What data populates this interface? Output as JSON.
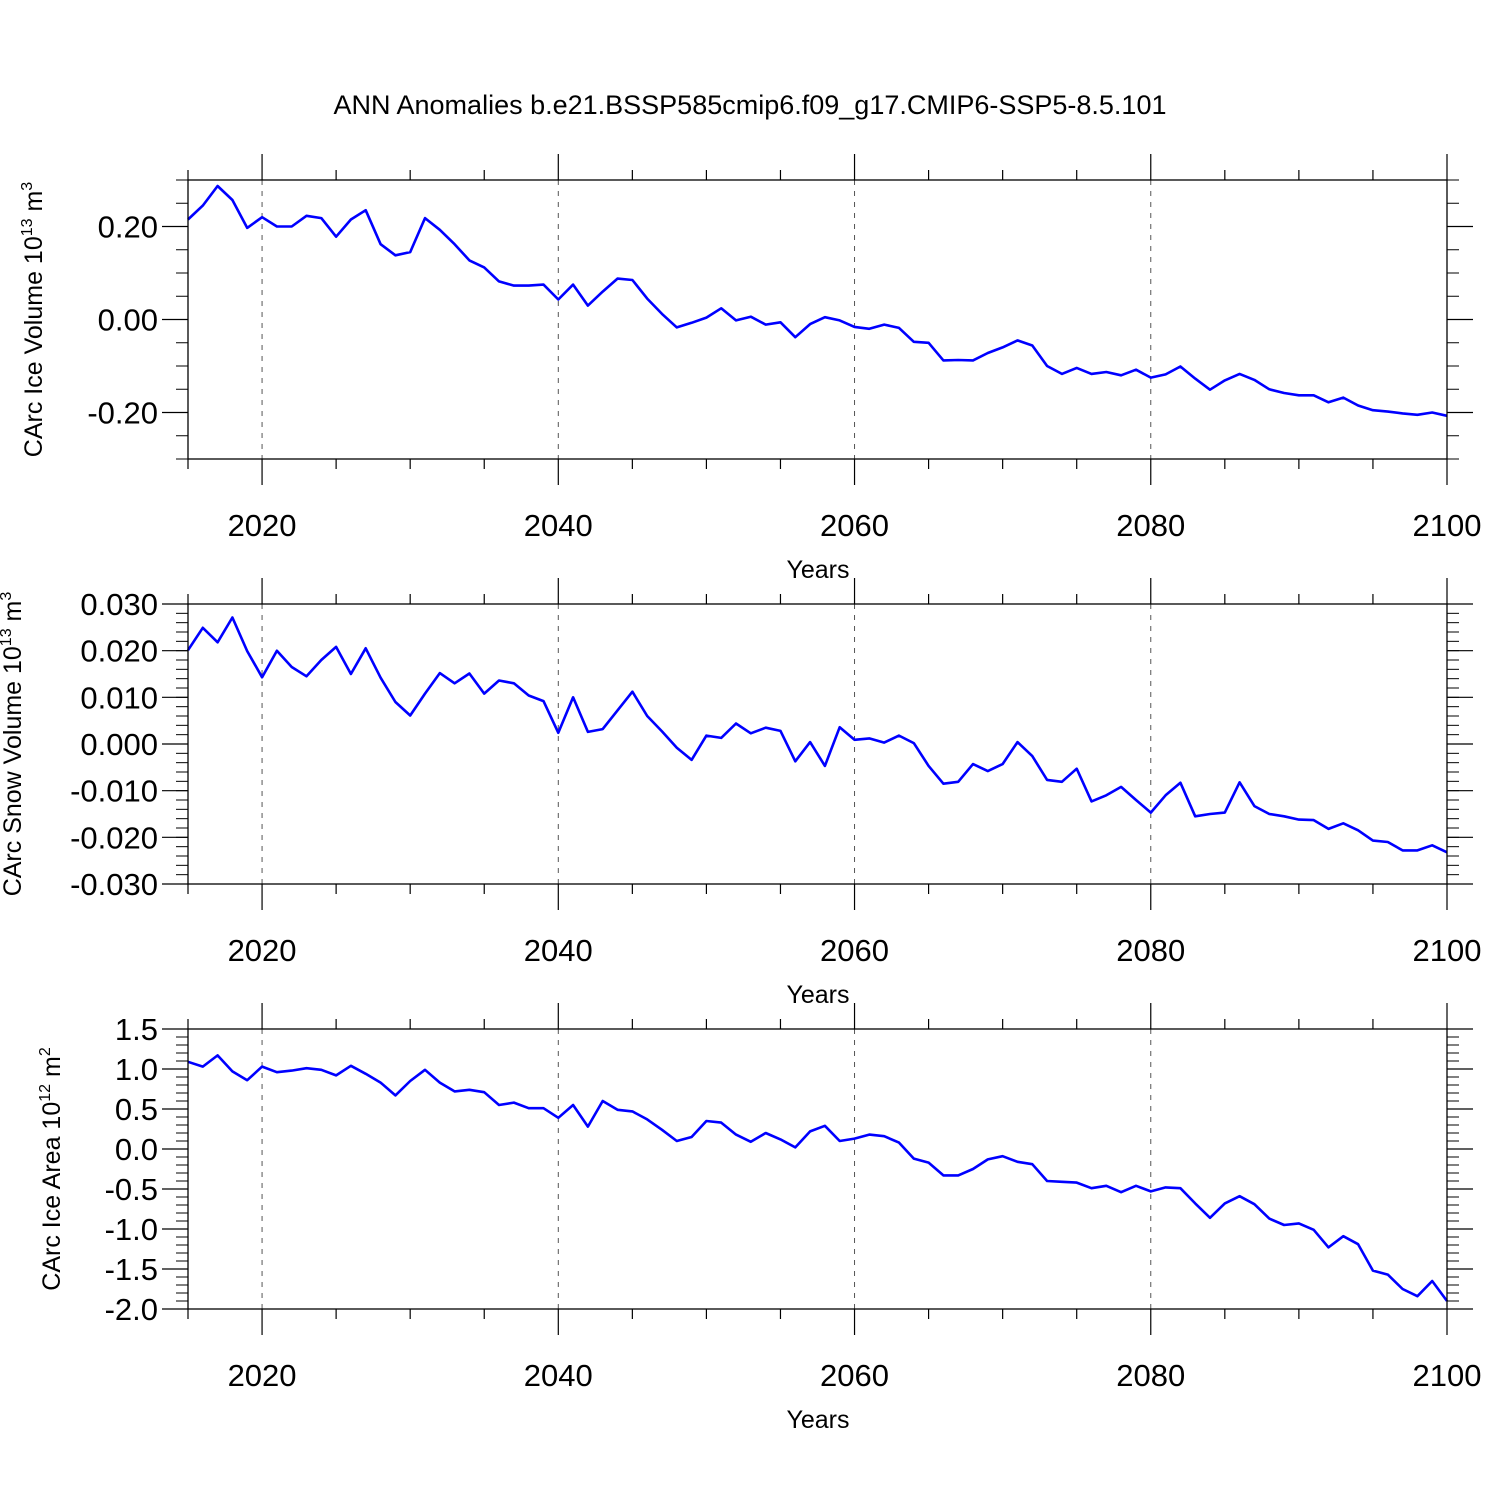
{
  "title": "ANN Anomalies b.e21.BSSP585cmip6.f09_g17.CMIP6-SSP5-8.5.101",
  "colors": {
    "line": "#0000ff",
    "axis": "#000000",
    "grid": "#555555"
  },
  "chart_data": [
    {
      "type": "line",
      "ylabel": "CArc Ice Volume",
      "yunit_base": "10",
      "yunit_exp": "13",
      "yunit_tail": "m",
      "yunit_tail_exp": "3",
      "xlabel": "Years",
      "xlim": [
        2015,
        2100
      ],
      "ylim": [
        -0.3,
        0.3
      ],
      "xticks": [
        "2020",
        "2040",
        "2060",
        "2080",
        "2100"
      ],
      "yticks": [
        "0.20",
        "0.00",
        "-0.20"
      ],
      "grid": "vertical dashed at major x ticks",
      "series": [
        {
          "x": [
            2015,
            2016,
            2017,
            2018,
            2019,
            2020,
            2021,
            2022,
            2023,
            2024,
            2025,
            2026,
            2027,
            2028,
            2029,
            2030,
            2031,
            2032,
            2033,
            2034,
            2035,
            2036,
            2037,
            2038,
            2039,
            2040,
            2041,
            2042,
            2043,
            2044,
            2045,
            2046,
            2047,
            2048,
            2049,
            2050,
            2051,
            2052,
            2053,
            2054,
            2055,
            2056,
            2057,
            2058,
            2059,
            2060,
            2061,
            2062,
            2063,
            2064,
            2065,
            2066,
            2067,
            2068,
            2069,
            2070,
            2071,
            2072,
            2073,
            2074,
            2075,
            2076,
            2077,
            2078,
            2079,
            2080,
            2081,
            2082,
            2083,
            2084,
            2085,
            2086,
            2087,
            2088,
            2089,
            2090,
            2091,
            2092,
            2093,
            2094,
            2095,
            2096,
            2097,
            2098,
            2099,
            2100
          ],
          "y": [
            0.215,
            0.245,
            0.287,
            0.257,
            0.197,
            0.22,
            0.2,
            0.2,
            0.223,
            0.218,
            0.178,
            0.215,
            0.235,
            0.162,
            0.138,
            0.145,
            0.218,
            0.193,
            0.162,
            0.127,
            0.112,
            0.082,
            0.073,
            0.073,
            0.075,
            0.043,
            0.075,
            0.03,
            0.06,
            0.088,
            0.085,
            0.045,
            0.012,
            -0.017,
            -0.007,
            0.004,
            0.024,
            -0.002,
            0.006,
            -0.011,
            -0.006,
            -0.038,
            -0.01,
            0.005,
            -0.002,
            -0.016,
            -0.02,
            -0.011,
            -0.018,
            -0.048,
            -0.05,
            -0.088,
            -0.087,
            -0.088,
            -0.072,
            -0.06,
            -0.045,
            -0.056,
            -0.1,
            -0.117,
            -0.104,
            -0.117,
            -0.113,
            -0.12,
            -0.108,
            -0.125,
            -0.118,
            -0.101,
            -0.127,
            -0.151,
            -0.131,
            -0.117,
            -0.13,
            -0.15,
            -0.158,
            -0.163,
            -0.163,
            -0.178,
            -0.168,
            -0.185,
            -0.195,
            -0.198,
            -0.202,
            -0.205,
            -0.2,
            -0.207
          ]
        }
      ]
    },
    {
      "type": "line",
      "ylabel": "CArc Snow Volume",
      "yunit_base": "10",
      "yunit_exp": "13",
      "yunit_tail": "m",
      "yunit_tail_exp": "3",
      "xlabel": "Years",
      "xlim": [
        2015,
        2100
      ],
      "ylim": [
        -0.03,
        0.03
      ],
      "xticks": [
        "2020",
        "2040",
        "2060",
        "2080",
        "2100"
      ],
      "yticks": [
        "0.030",
        "0.020",
        "0.010",
        "0.000",
        "-0.010",
        "-0.020",
        "-0.030"
      ],
      "grid": "vertical dashed at major x ticks",
      "series": [
        {
          "x": [
            2015,
            2016,
            2017,
            2018,
            2019,
            2020,
            2021,
            2022,
            2023,
            2024,
            2025,
            2026,
            2027,
            2028,
            2029,
            2030,
            2031,
            2032,
            2033,
            2034,
            2035,
            2036,
            2037,
            2038,
            2039,
            2040,
            2041,
            2042,
            2043,
            2044,
            2045,
            2046,
            2047,
            2048,
            2049,
            2050,
            2051,
            2052,
            2053,
            2054,
            2055,
            2056,
            2057,
            2058,
            2059,
            2060,
            2061,
            2062,
            2063,
            2064,
            2065,
            2066,
            2067,
            2068,
            2069,
            2070,
            2071,
            2072,
            2073,
            2074,
            2075,
            2076,
            2077,
            2078,
            2079,
            2080,
            2081,
            2082,
            2083,
            2084,
            2085,
            2086,
            2087,
            2088,
            2089,
            2090,
            2091,
            2092,
            2093,
            2094,
            2095,
            2096,
            2097,
            2098,
            2099,
            2100
          ],
          "y": [
            0.0201,
            0.0249,
            0.0218,
            0.0271,
            0.0199,
            0.0143,
            0.02,
            0.0165,
            0.0145,
            0.018,
            0.0208,
            0.015,
            0.0205,
            0.0142,
            0.009,
            0.0061,
            0.0108,
            0.0152,
            0.013,
            0.0151,
            0.0108,
            0.0136,
            0.013,
            0.0104,
            0.0092,
            0.0024,
            0.01,
            0.0026,
            0.0032,
            0.0072,
            0.0112,
            0.006,
            0.0027,
            -0.0008,
            -0.0034,
            0.0018,
            0.0013,
            0.0044,
            0.0023,
            0.0035,
            0.0028,
            -0.0037,
            0.0004,
            -0.0047,
            0.0036,
            0.0009,
            0.0012,
            0.0003,
            0.0018,
            0.0002,
            -0.0047,
            -0.0085,
            -0.0081,
            -0.0043,
            -0.0058,
            -0.0043,
            0.0004,
            -0.0026,
            -0.0077,
            -0.0081,
            -0.0053,
            -0.0123,
            -0.011,
            -0.0092,
            -0.012,
            -0.0147,
            -0.011,
            -0.0083,
            -0.0155,
            -0.015,
            -0.0147,
            -0.0082,
            -0.0133,
            -0.015,
            -0.0155,
            -0.0162,
            -0.0163,
            -0.0182,
            -0.017,
            -0.0185,
            -0.0207,
            -0.021,
            -0.0228,
            -0.0228,
            -0.0217,
            -0.0232
          ]
        }
      ]
    },
    {
      "type": "line",
      "ylabel": "CArc Ice Area",
      "yunit_base": "10",
      "yunit_exp": "12",
      "yunit_tail": "m",
      "yunit_tail_exp": "2",
      "xlabel": "Years",
      "xlim": [
        2015,
        2100
      ],
      "ylim": [
        -2.0,
        1.5
      ],
      "xticks": [
        "2020",
        "2040",
        "2060",
        "2080",
        "2100"
      ],
      "yticks": [
        "1.5",
        "1.0",
        "0.5",
        "0.0",
        "-0.5",
        "-1.0",
        "-1.5",
        "-2.0"
      ],
      "grid": "vertical dashed at major x ticks",
      "series": [
        {
          "x": [
            2015,
            2016,
            2017,
            2018,
            2019,
            2020,
            2021,
            2022,
            2023,
            2024,
            2025,
            2026,
            2027,
            2028,
            2029,
            2030,
            2031,
            2032,
            2033,
            2034,
            2035,
            2036,
            2037,
            2038,
            2039,
            2040,
            2041,
            2042,
            2043,
            2044,
            2045,
            2046,
            2047,
            2048,
            2049,
            2050,
            2051,
            2052,
            2053,
            2054,
            2055,
            2056,
            2057,
            2058,
            2059,
            2060,
            2061,
            2062,
            2063,
            2064,
            2065,
            2066,
            2067,
            2068,
            2069,
            2070,
            2071,
            2072,
            2073,
            2074,
            2075,
            2076,
            2077,
            2078,
            2079,
            2080,
            2081,
            2082,
            2083,
            2084,
            2085,
            2086,
            2087,
            2088,
            2089,
            2090,
            2091,
            2092,
            2093,
            2094,
            2095,
            2096,
            2097,
            2098,
            2099,
            2100
          ],
          "y": [
            1.09,
            1.03,
            1.17,
            0.97,
            0.86,
            1.03,
            0.96,
            0.98,
            1.01,
            0.99,
            0.92,
            1.04,
            0.94,
            0.83,
            0.67,
            0.85,
            0.99,
            0.83,
            0.72,
            0.74,
            0.71,
            0.55,
            0.58,
            0.51,
            0.51,
            0.39,
            0.55,
            0.28,
            0.6,
            0.49,
            0.47,
            0.37,
            0.24,
            0.1,
            0.15,
            0.35,
            0.33,
            0.18,
            0.09,
            0.2,
            0.12,
            0.02,
            0.22,
            0.29,
            0.1,
            0.13,
            0.18,
            0.16,
            0.08,
            -0.12,
            -0.17,
            -0.33,
            -0.33,
            -0.25,
            -0.13,
            -0.09,
            -0.16,
            -0.19,
            -0.4,
            -0.41,
            -0.42,
            -0.49,
            -0.46,
            -0.54,
            -0.46,
            -0.53,
            -0.48,
            -0.49,
            -0.68,
            -0.86,
            -0.68,
            -0.59,
            -0.69,
            -0.87,
            -0.95,
            -0.93,
            -1.01,
            -1.23,
            -1.09,
            -1.19,
            -1.52,
            -1.57,
            -1.75,
            -1.84,
            -1.65,
            -1.9
          ]
        }
      ]
    }
  ]
}
